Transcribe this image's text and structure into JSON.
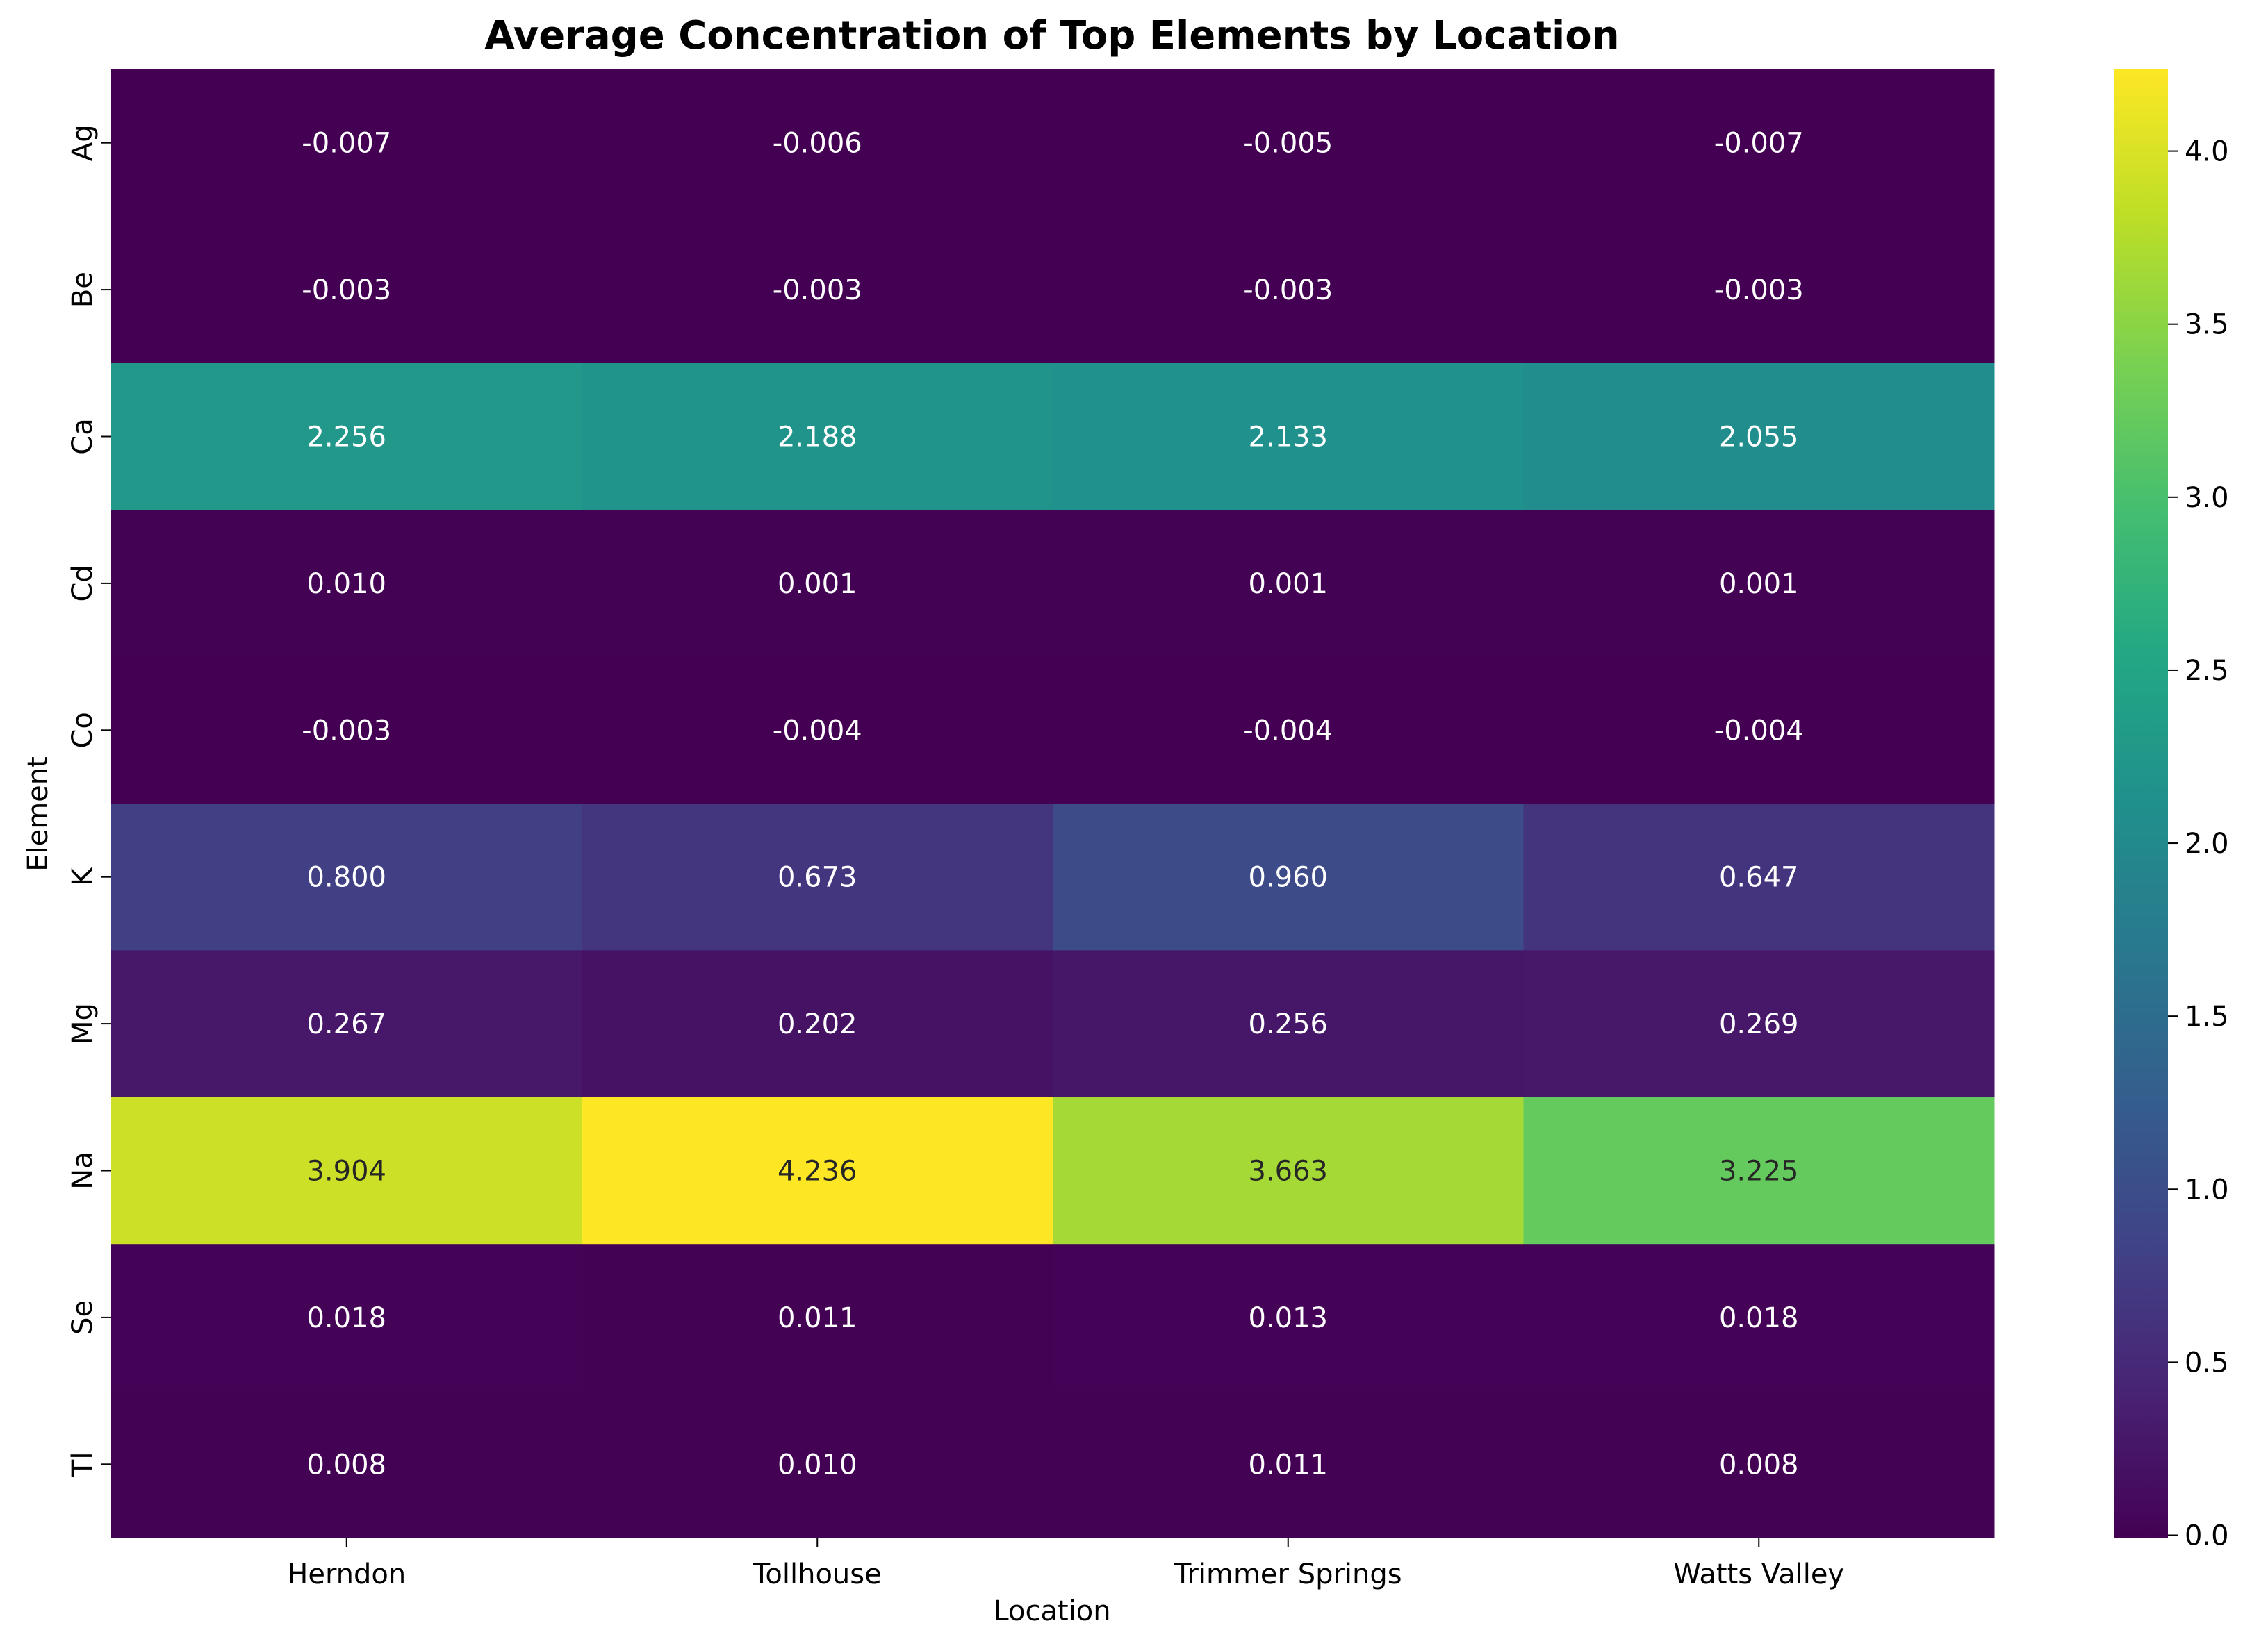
{
  "chart_data": {
    "type": "heatmap",
    "title": "Average Concentration of Top Elements by Location",
    "xlabel": "Location",
    "ylabel": "Element",
    "x_categories": [
      "Herndon",
      "Tollhouse",
      "Trimmer Springs",
      "Watts Valley"
    ],
    "y_categories": [
      "Ag",
      "Be",
      "Ca",
      "Cd",
      "Co",
      "K",
      "Mg",
      "Na",
      "Se",
      "Tl"
    ],
    "values": [
      [
        -0.007,
        -0.006,
        -0.005,
        -0.007
      ],
      [
        -0.003,
        -0.003,
        -0.003,
        -0.003
      ],
      [
        2.256,
        2.188,
        2.133,
        2.055
      ],
      [
        0.01,
        0.001,
        0.001,
        0.001
      ],
      [
        -0.003,
        -0.004,
        -0.004,
        -0.004
      ],
      [
        0.8,
        0.673,
        0.96,
        0.647
      ],
      [
        0.267,
        0.202,
        0.256,
        0.269
      ],
      [
        3.904,
        4.236,
        3.663,
        3.225
      ],
      [
        0.018,
        0.011,
        0.013,
        0.018
      ],
      [
        0.008,
        0.01,
        0.011,
        0.008
      ]
    ],
    "cell_labels": [
      [
        "-0.007",
        "-0.006",
        "-0.005",
        "-0.007"
      ],
      [
        "-0.003",
        "-0.003",
        "-0.003",
        "-0.003"
      ],
      [
        "2.256",
        "2.188",
        "2.133",
        "2.055"
      ],
      [
        "0.010",
        "0.001",
        "0.001",
        "0.001"
      ],
      [
        "-0.003",
        "-0.004",
        "-0.004",
        "-0.004"
      ],
      [
        "0.800",
        "0.673",
        "0.960",
        "0.647"
      ],
      [
        "0.267",
        "0.202",
        "0.256",
        "0.269"
      ],
      [
        "3.904",
        "4.236",
        "3.663",
        "3.225"
      ],
      [
        "0.018",
        "0.011",
        "0.013",
        "0.018"
      ],
      [
        "0.008",
        "0.010",
        "0.011",
        "0.008"
      ]
    ],
    "colormap": "viridis",
    "color_range": [
      -0.007,
      4.236
    ],
    "colorbar": {
      "ticks": [
        0.0,
        0.5,
        1.0,
        1.5,
        2.0,
        2.5,
        3.0,
        3.5,
        4.0
      ],
      "tick_labels": [
        "0.0",
        "0.5",
        "1.0",
        "1.5",
        "2.0",
        "2.5",
        "3.0",
        "3.5",
        "4.0"
      ],
      "placement": "right"
    },
    "grid": false
  }
}
